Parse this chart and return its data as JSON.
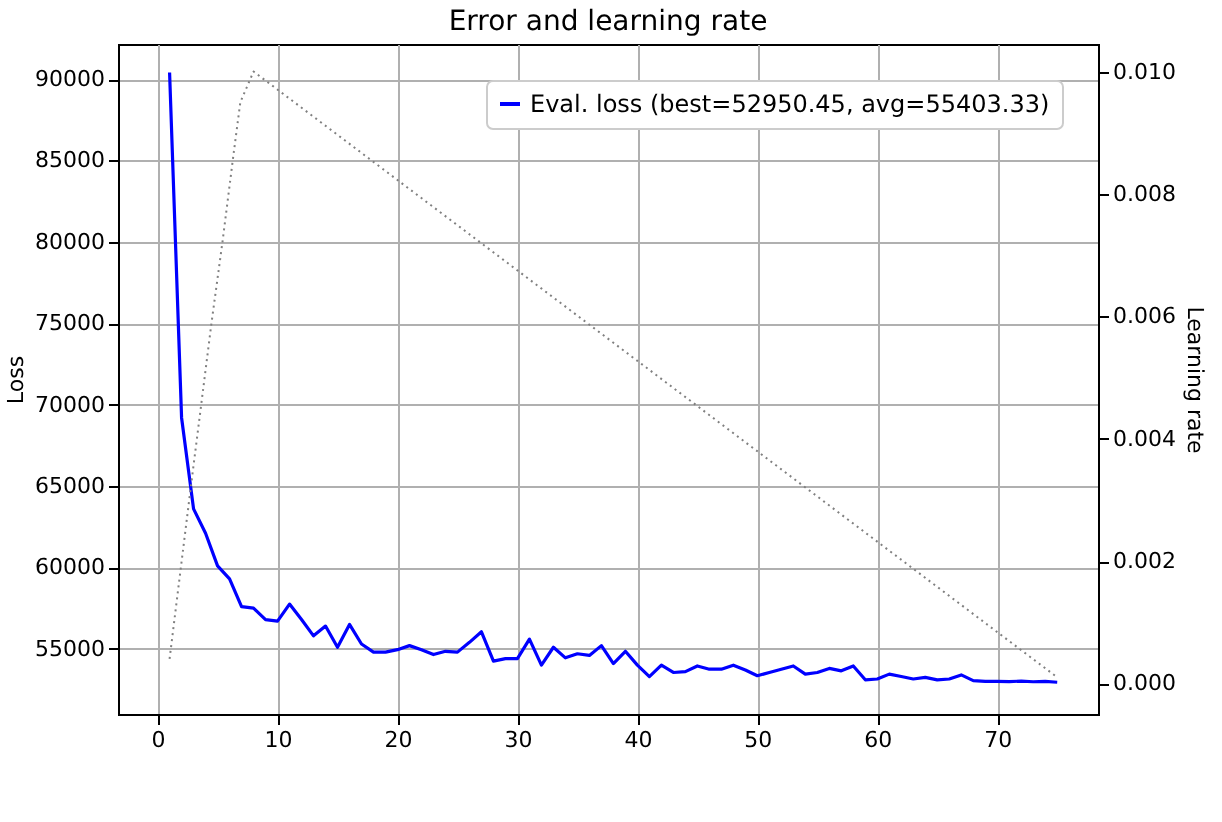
{
  "chart_data": {
    "type": "line",
    "title": "Error and learning rate",
    "ylabel": "Loss",
    "y2label": "Learning rate",
    "xlim": [
      -3.3,
      78.4
    ],
    "xticks": [
      0,
      10,
      20,
      30,
      40,
      50,
      60,
      70
    ],
    "ylim": [
      51000,
      92150
    ],
    "yticks": [
      55000,
      60000,
      65000,
      70000,
      75000,
      80000,
      85000,
      90000
    ],
    "y2lim": [
      -0.0005,
      0.01045
    ],
    "y2ticks": [
      {
        "value": 0,
        "label": "0.000"
      },
      {
        "value": 0.002,
        "label": "0.002"
      },
      {
        "value": 0.004,
        "label": "0.004"
      },
      {
        "value": 0.006,
        "label": "0.006"
      },
      {
        "value": 0.008,
        "label": "0.008"
      },
      {
        "value": 0.01,
        "label": "0.010"
      }
    ],
    "grid": true,
    "legend": "top right",
    "marker": "none",
    "series": [
      {
        "name": "Eval. loss (best=52950.45, avg=55403.33)",
        "color": "#0000ff",
        "line_style": "solid",
        "x": [
          1,
          2,
          3,
          4,
          5,
          6,
          7,
          8,
          9,
          10,
          11,
          12,
          13,
          14,
          15,
          16,
          17,
          18,
          19,
          20,
          21,
          22,
          23,
          24,
          25,
          26,
          27,
          28,
          29,
          30,
          31,
          32,
          33,
          34,
          35,
          36,
          37,
          38,
          39,
          40,
          41,
          42,
          43,
          44,
          45,
          46,
          47,
          48,
          49,
          50,
          51,
          52,
          53,
          54,
          55,
          56,
          57,
          58,
          59,
          60,
          61,
          62,
          63,
          64,
          65,
          66,
          67,
          68,
          69,
          70,
          71,
          72,
          73,
          74,
          75
        ],
        "values": [
          90400,
          69200,
          63600,
          62100,
          60100,
          59300,
          57600,
          57500,
          56800,
          56700,
          57750,
          56800,
          55800,
          56400,
          55100,
          56500,
          55300,
          54800,
          54800,
          54950,
          55200,
          54950,
          54650,
          54850,
          54800,
          55400,
          56050,
          54250,
          54400,
          54400,
          55600,
          54000,
          55100,
          54450,
          54700,
          54600,
          55200,
          54100,
          54850,
          54000,
          53300,
          54000,
          53550,
          53600,
          53950,
          53750,
          53750,
          54000,
          53700,
          53350,
          53550,
          53750,
          53950,
          53450,
          53550,
          53800,
          53650,
          53950,
          53100,
          53150,
          53450,
          53300,
          53150,
          53250,
          53100,
          53150,
          53400,
          53050,
          53000,
          53000,
          52990,
          53020,
          52980,
          53000,
          52950
        ]
      },
      {
        "color": "#808080",
        "line_style": "dotted",
        "axis": "y2",
        "x": [
          1,
          2.7,
          4.5,
          5.4,
          6.3,
          6.9,
          8,
          75
        ],
        "values": [
          0.0004,
          0.0031,
          0.0059,
          0.0072,
          0.0086,
          0.0095,
          0.01,
          0.0001
        ]
      }
    ]
  }
}
